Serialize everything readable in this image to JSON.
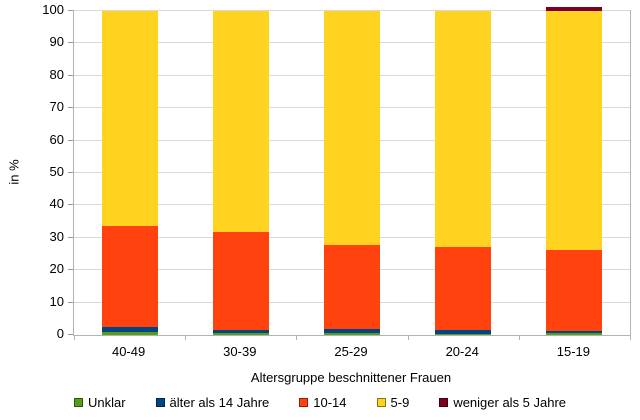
{
  "chart_data": {
    "type": "bar",
    "stacked": true,
    "title": "",
    "xlabel": "Altersgruppe beschnittener Frauen",
    "ylabel": "in %",
    "ylim": [
      0,
      100
    ],
    "ytick_step": 10,
    "ytick_labels": [
      "0",
      "10",
      "20",
      "30",
      "40",
      "50",
      "60",
      "70",
      "80",
      "90",
      "100"
    ],
    "grid": true,
    "legend_position": "bottom",
    "categories": [
      "40-49",
      "30-39",
      "25-29",
      "20-24",
      "15-19"
    ],
    "series": [
      {
        "name": "Unklar",
        "color": "#579D1C",
        "values": [
          1.0,
          0.5,
          0.7,
          0.4,
          0.6
        ]
      },
      {
        "name": "älter als 14 Jahre",
        "color": "#004586",
        "values": [
          1.5,
          1.2,
          1.3,
          1.2,
          0.7
        ]
      },
      {
        "name": "10-14",
        "color": "#FF420E",
        "values": [
          31.0,
          30.0,
          25.7,
          25.5,
          24.8
        ]
      },
      {
        "name": "5-9",
        "color": "#FFD320",
        "values": [
          66.5,
          68.3,
          72.3,
          72.9,
          73.9
        ]
      },
      {
        "name": "weniger als 5 Jahre",
        "color": "#7E0021",
        "values": [
          0,
          0,
          0,
          0,
          1.3
        ]
      }
    ]
  }
}
